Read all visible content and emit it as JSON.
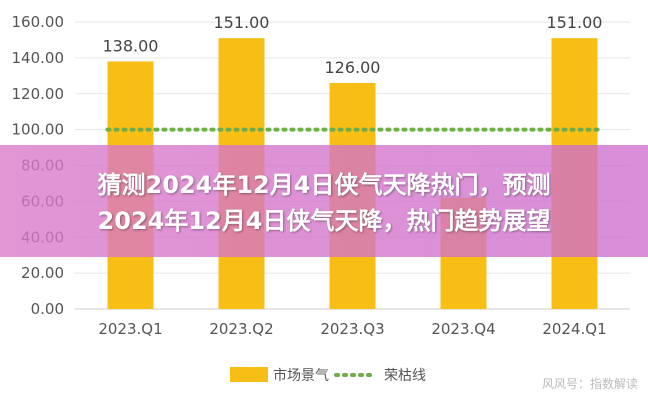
{
  "chart_data": {
    "type": "bar",
    "categories": [
      "2023.Q1",
      "2023.Q2",
      "2023.Q3",
      "2023.Q4",
      "2024.Q1"
    ],
    "series": [
      {
        "name": "市场景气",
        "type": "bar",
        "values": [
          138.0,
          151.0,
          126.0,
          62.0,
          151.0
        ],
        "color": "#F7BE16"
      },
      {
        "name": "荣枯线",
        "type": "line",
        "style": "dotted",
        "values": [
          100,
          100,
          100,
          100,
          100
        ],
        "color": "#70AD47"
      }
    ],
    "data_labels": [
      "138.00",
      "151.00",
      "126.00",
      "",
      "151.00"
    ],
    "y_ticks": [
      "0.00",
      "20.00",
      "40.00",
      "60.00",
      "80.00",
      "100.00",
      "120.00",
      "140.00",
      "160.00"
    ],
    "ylim": [
      0,
      160
    ],
    "grid": true,
    "legend_position": "bottom",
    "title": "",
    "xlabel": "",
    "ylabel": ""
  },
  "overlay": {
    "line1": "猜测2024年12月4日侠气天降热门，预测",
    "line2": "2024年12月4日侠气天降，热门趋势展望"
  },
  "watermark": "风风号：指数解读"
}
